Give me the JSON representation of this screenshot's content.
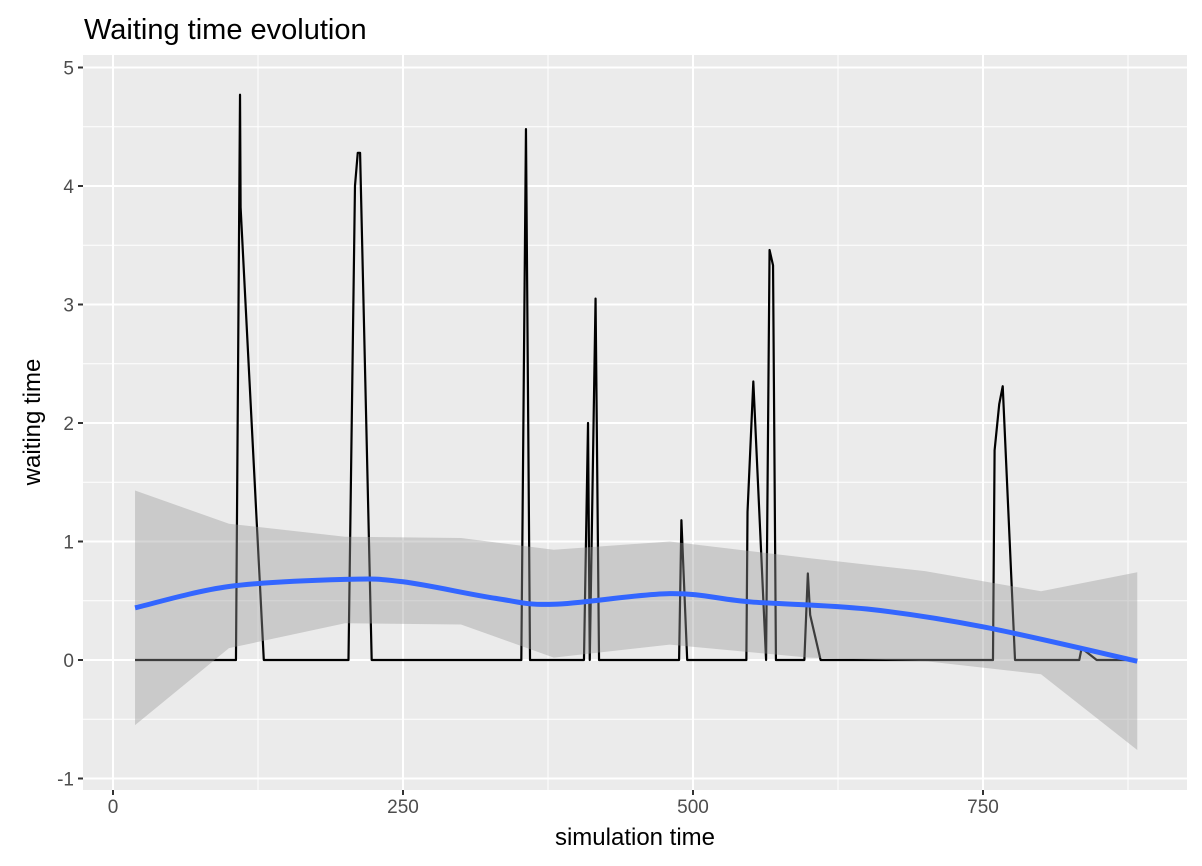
{
  "chart_data": {
    "type": "line",
    "title": "Waiting time evolution",
    "xlabel": "simulation time",
    "ylabel": "waiting time",
    "xlim": [
      -50,
      920
    ],
    "ylim": [
      -1.1,
      5.1
    ],
    "x_ticks": [
      0,
      250,
      500,
      750
    ],
    "x_tick_labels": [
      "0",
      "250",
      "500",
      "750"
    ],
    "y_ticks": [
      -1,
      0,
      1,
      2,
      3,
      4,
      5
    ],
    "y_tick_labels": [
      "-1",
      "0",
      "1",
      "2",
      "3",
      "4",
      "5"
    ],
    "grid": true,
    "series": [
      {
        "name": "waiting time",
        "color": "#000000",
        "x": [
          19,
          106,
          109.5,
          110,
          130,
          203,
          208.6,
          211,
          213,
          223,
          352,
          356,
          359.5,
          406,
          409.5,
          411,
          416,
          419,
          488,
          490,
          495,
          546,
          547,
          552,
          563,
          566,
          569,
          571.5,
          596,
          599,
          601,
          610,
          758.6,
          760,
          764,
          767,
          777.6,
          833,
          835,
          848,
          883
        ],
        "y": [
          0,
          0,
          4.77,
          3.82,
          0,
          0,
          4.0,
          4.28,
          4.28,
          0,
          0,
          4.48,
          0,
          0,
          2.0,
          0,
          3.05,
          0,
          0,
          1.18,
          0,
          0,
          1.25,
          2.35,
          0,
          3.46,
          3.33,
          0,
          0,
          0.73,
          0.38,
          0,
          0,
          1.77,
          2.16,
          2.31,
          0,
          0,
          0.1,
          0,
          0
        ]
      },
      {
        "name": "loess smooth",
        "color": "#3366FF",
        "x": [
          19,
          100,
          200,
          250,
          330,
          380,
          480,
          550,
          650,
          750,
          883
        ],
        "y": [
          0.44,
          0.62,
          0.68,
          0.66,
          0.52,
          0.47,
          0.56,
          0.49,
          0.43,
          0.28,
          -0.01
        ]
      }
    ],
    "confidence_band": {
      "color": "#999999",
      "x": [
        19,
        100,
        200,
        300,
        380,
        480,
        600,
        700,
        800,
        883
      ],
      "upper": [
        1.43,
        1.15,
        1.04,
        1.03,
        0.93,
        1.0,
        0.86,
        0.75,
        0.58,
        0.74
      ],
      "lower": [
        -0.55,
        0.1,
        0.31,
        0.3,
        0.02,
        0.13,
        0.02,
        -0.01,
        -0.12,
        -0.76
      ]
    }
  }
}
